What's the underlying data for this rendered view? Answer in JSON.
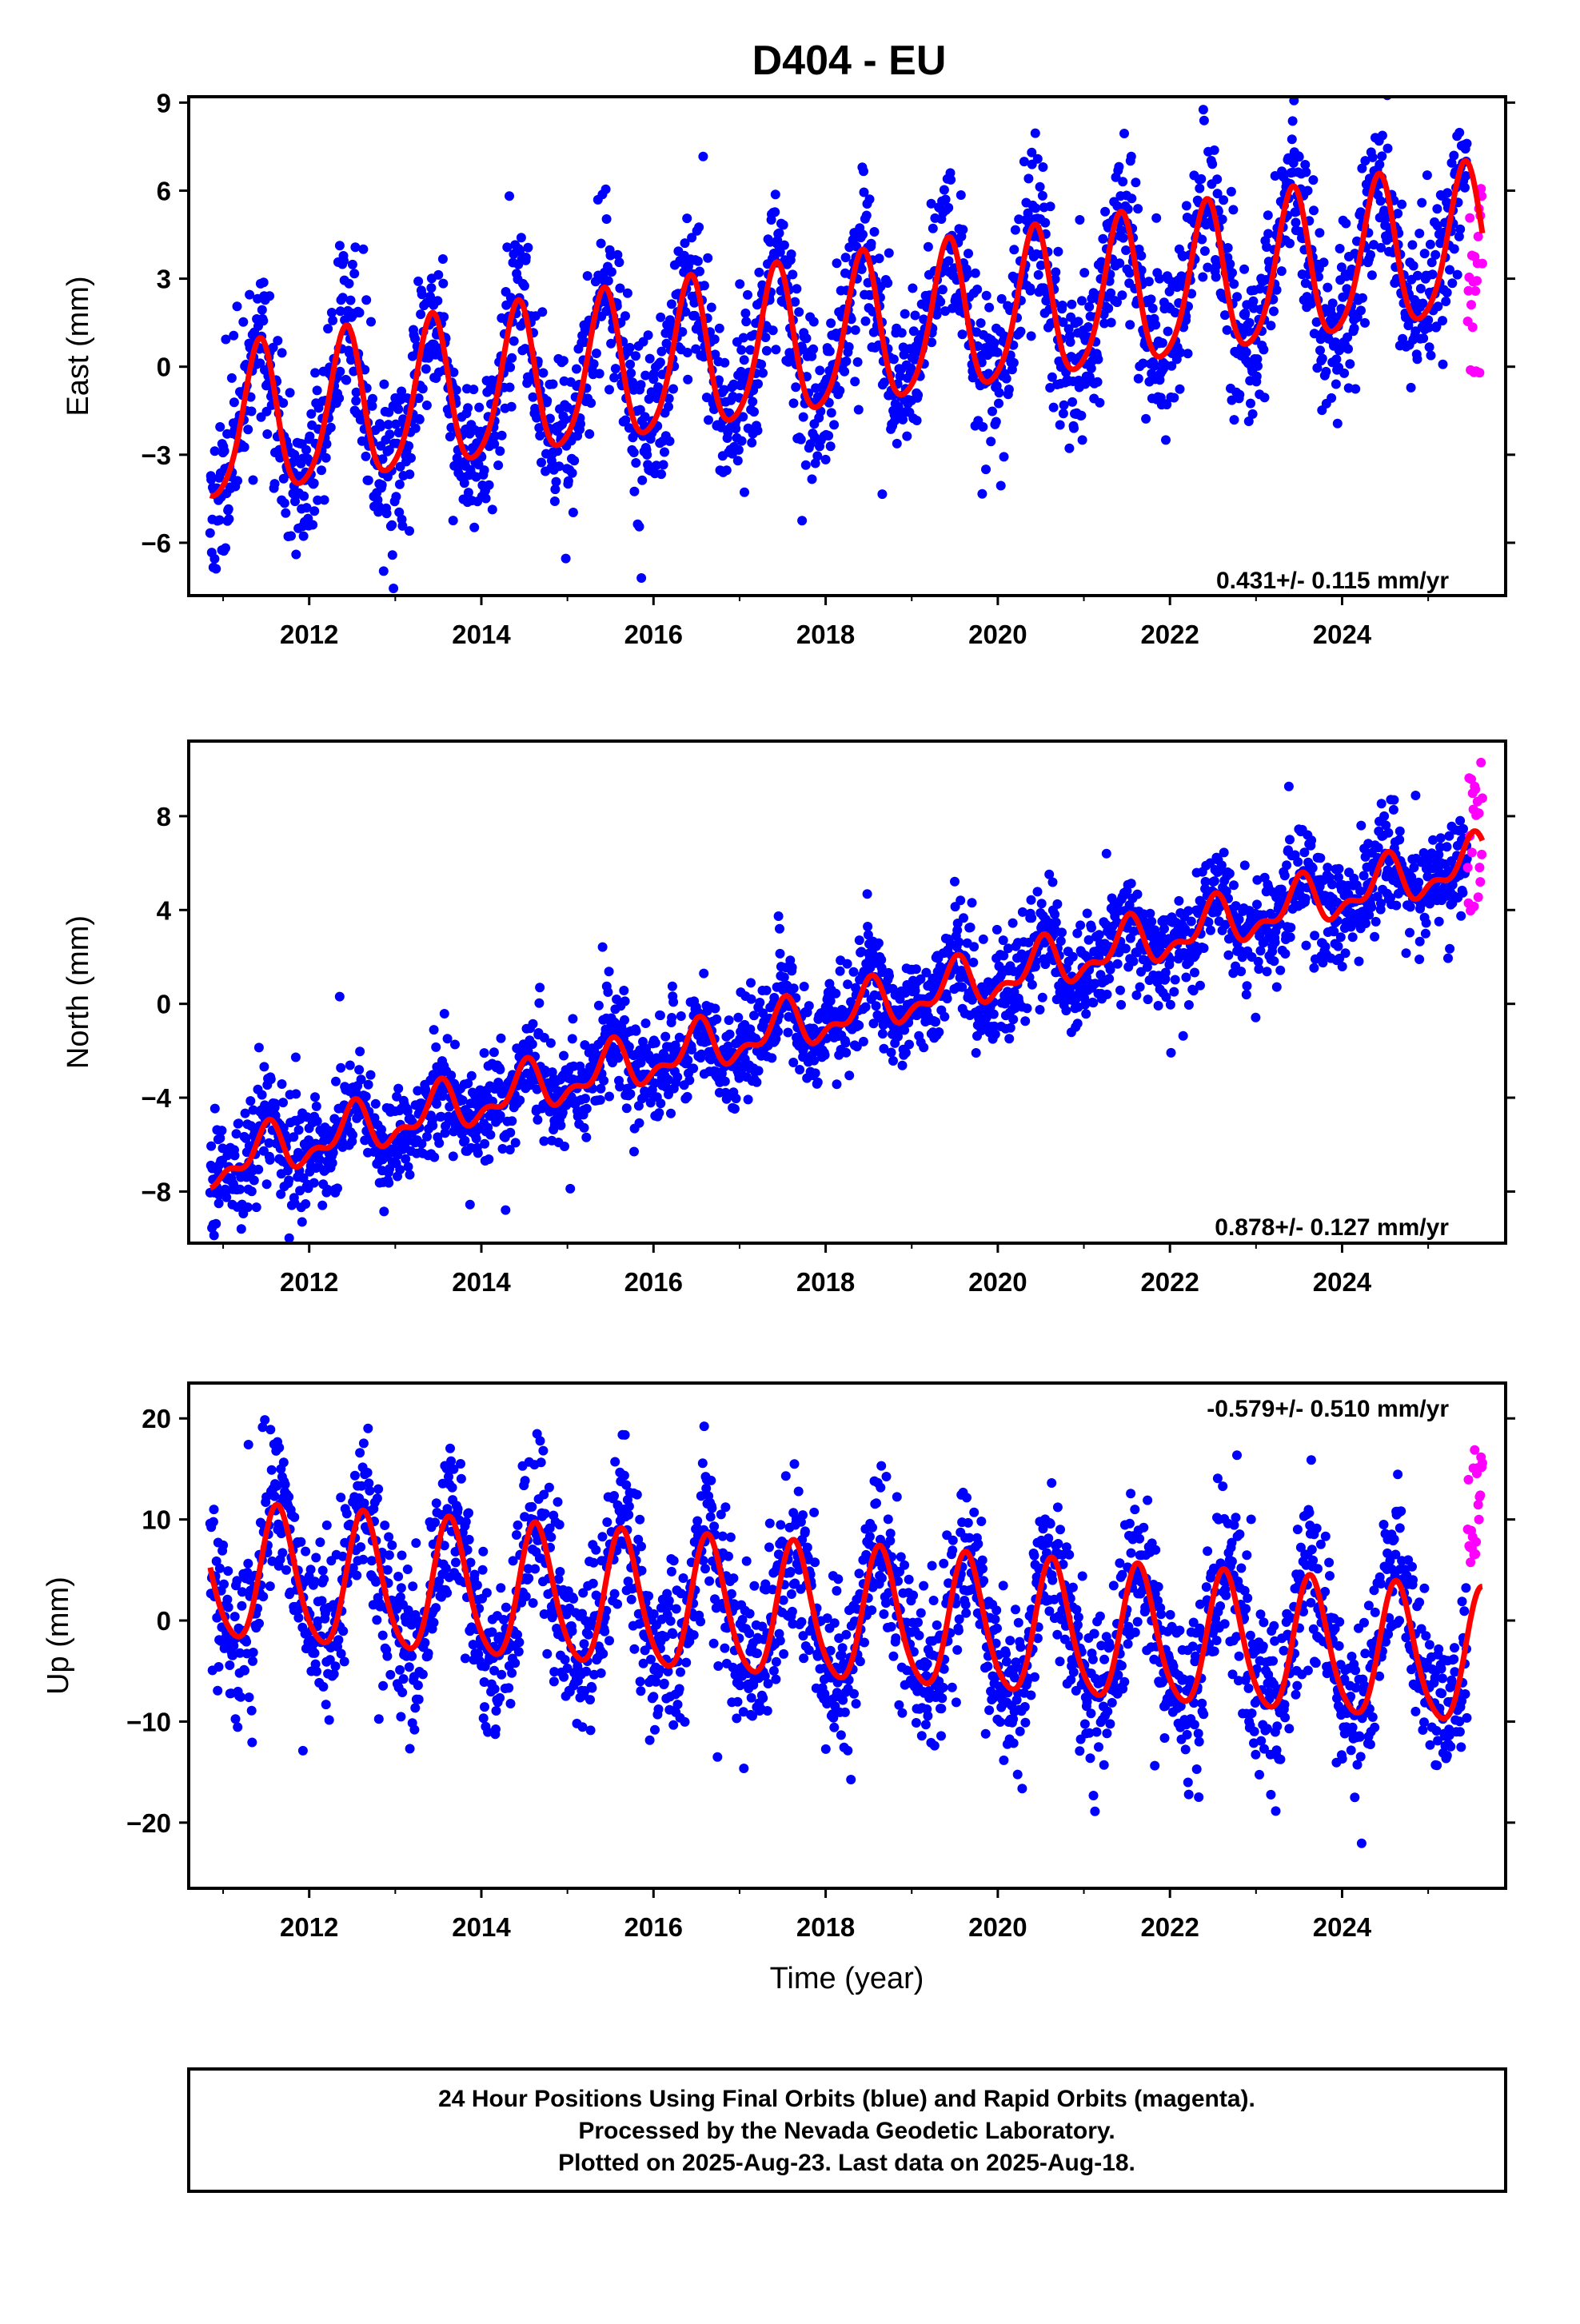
{
  "title": "D404 - EU",
  "caption": {
    "line1": "24 Hour Positions Using Final Orbits (blue) and Rapid Orbits (magenta).",
    "line2": "Processed by the Nevada Geodetic Laboratory.",
    "line3": "Plotted on 2025-Aug-23. Last data on 2025-Aug-18."
  },
  "colors": {
    "final_orbits": "#0000ff",
    "rapid_orbits": "#ff00ff",
    "model_fit": "#ff0000",
    "axes": "#000000"
  },
  "chart_data": [
    {
      "type": "scatter",
      "ylabel": "East (mm)",
      "xlabel": "",
      "xlim": [
        2010.6,
        2025.9
      ],
      "ylim": [
        -7.8,
        9.2
      ],
      "xticks": [
        2012,
        2014,
        2016,
        2018,
        2020,
        2022,
        2024
      ],
      "yticks": [
        -6,
        -3,
        0,
        3,
        6,
        9
      ],
      "ytick_labels": [
        "−6",
        "−3",
        "0",
        "3",
        "6",
        "9"
      ],
      "rate_text": "0.431+/- 0.115 mm/yr",
      "rate_position": "bottom-right",
      "grid": false,
      "model": {
        "t0": 2010.85,
        "offset": -2.2,
        "slope": 0.431,
        "annual_amp": 2.55,
        "annual_peak": 0.42,
        "semiannual_amp": 0.4,
        "semiannual_peak": 0.45
      },
      "scatter": {
        "t_start": 2010.85,
        "t_end": 2025.45,
        "noise": 1.35,
        "seed": 11
      },
      "rapid": {
        "t_start": 2025.46,
        "t_end": 2025.63,
        "min": -0.3,
        "max": 6.3
      }
    },
    {
      "type": "scatter",
      "ylabel": "North (mm)",
      "xlabel": "",
      "xlim": [
        2010.6,
        2025.9
      ],
      "ylim": [
        -10.2,
        11.2
      ],
      "xticks": [
        2012,
        2014,
        2016,
        2018,
        2020,
        2022,
        2024
      ],
      "yticks": [
        -8,
        -4,
        0,
        4,
        8
      ],
      "ytick_labels": [
        "−8",
        "−4",
        "0",
        "4",
        "8"
      ],
      "rate_text": "0.878+/- 0.127 mm/yr",
      "rate_position": "bottom-right",
      "grid": false,
      "model": {
        "t0": 2010.85,
        "offset": -6.9,
        "slope": 0.878,
        "annual_amp": 0.9,
        "annual_peak": 0.5,
        "semiannual_amp": 0.5,
        "semiannual_peak": 0.55
      },
      "scatter": {
        "t_start": 2010.85,
        "t_end": 2025.45,
        "noise": 1.1,
        "seed": 29
      },
      "rapid": {
        "t_start": 2025.46,
        "t_end": 2025.63,
        "min": 3.8,
        "max": 10.8
      }
    },
    {
      "type": "scatter",
      "ylabel": "Up (mm)",
      "xlabel": "Time (year)",
      "xlim": [
        2010.6,
        2025.9
      ],
      "ylim": [
        -26.5,
        23.5
      ],
      "xticks": [
        2012,
        2014,
        2016,
        2018,
        2020,
        2022,
        2024
      ],
      "yticks": [
        -20,
        -10,
        0,
        10,
        20
      ],
      "ytick_labels": [
        "−20",
        "−10",
        "0",
        "10",
        "20"
      ],
      "rate_text": "-0.579+/- 0.510 mm/yr",
      "rate_position": "top-right",
      "grid": false,
      "model": {
        "t0": 2010.85,
        "offset": 4.5,
        "slope": -0.579,
        "annual_amp": 6.6,
        "annual_peak": 0.64,
        "semiannual_amp": 0.9,
        "semiannual_peak": 0.6
      },
      "scatter": {
        "t_start": 2010.85,
        "t_end": 2025.45,
        "noise": 3.9,
        "seed": 47
      },
      "rapid": {
        "t_start": 2025.46,
        "t_end": 2025.63,
        "min": 5.5,
        "max": 17.5
      }
    }
  ]
}
